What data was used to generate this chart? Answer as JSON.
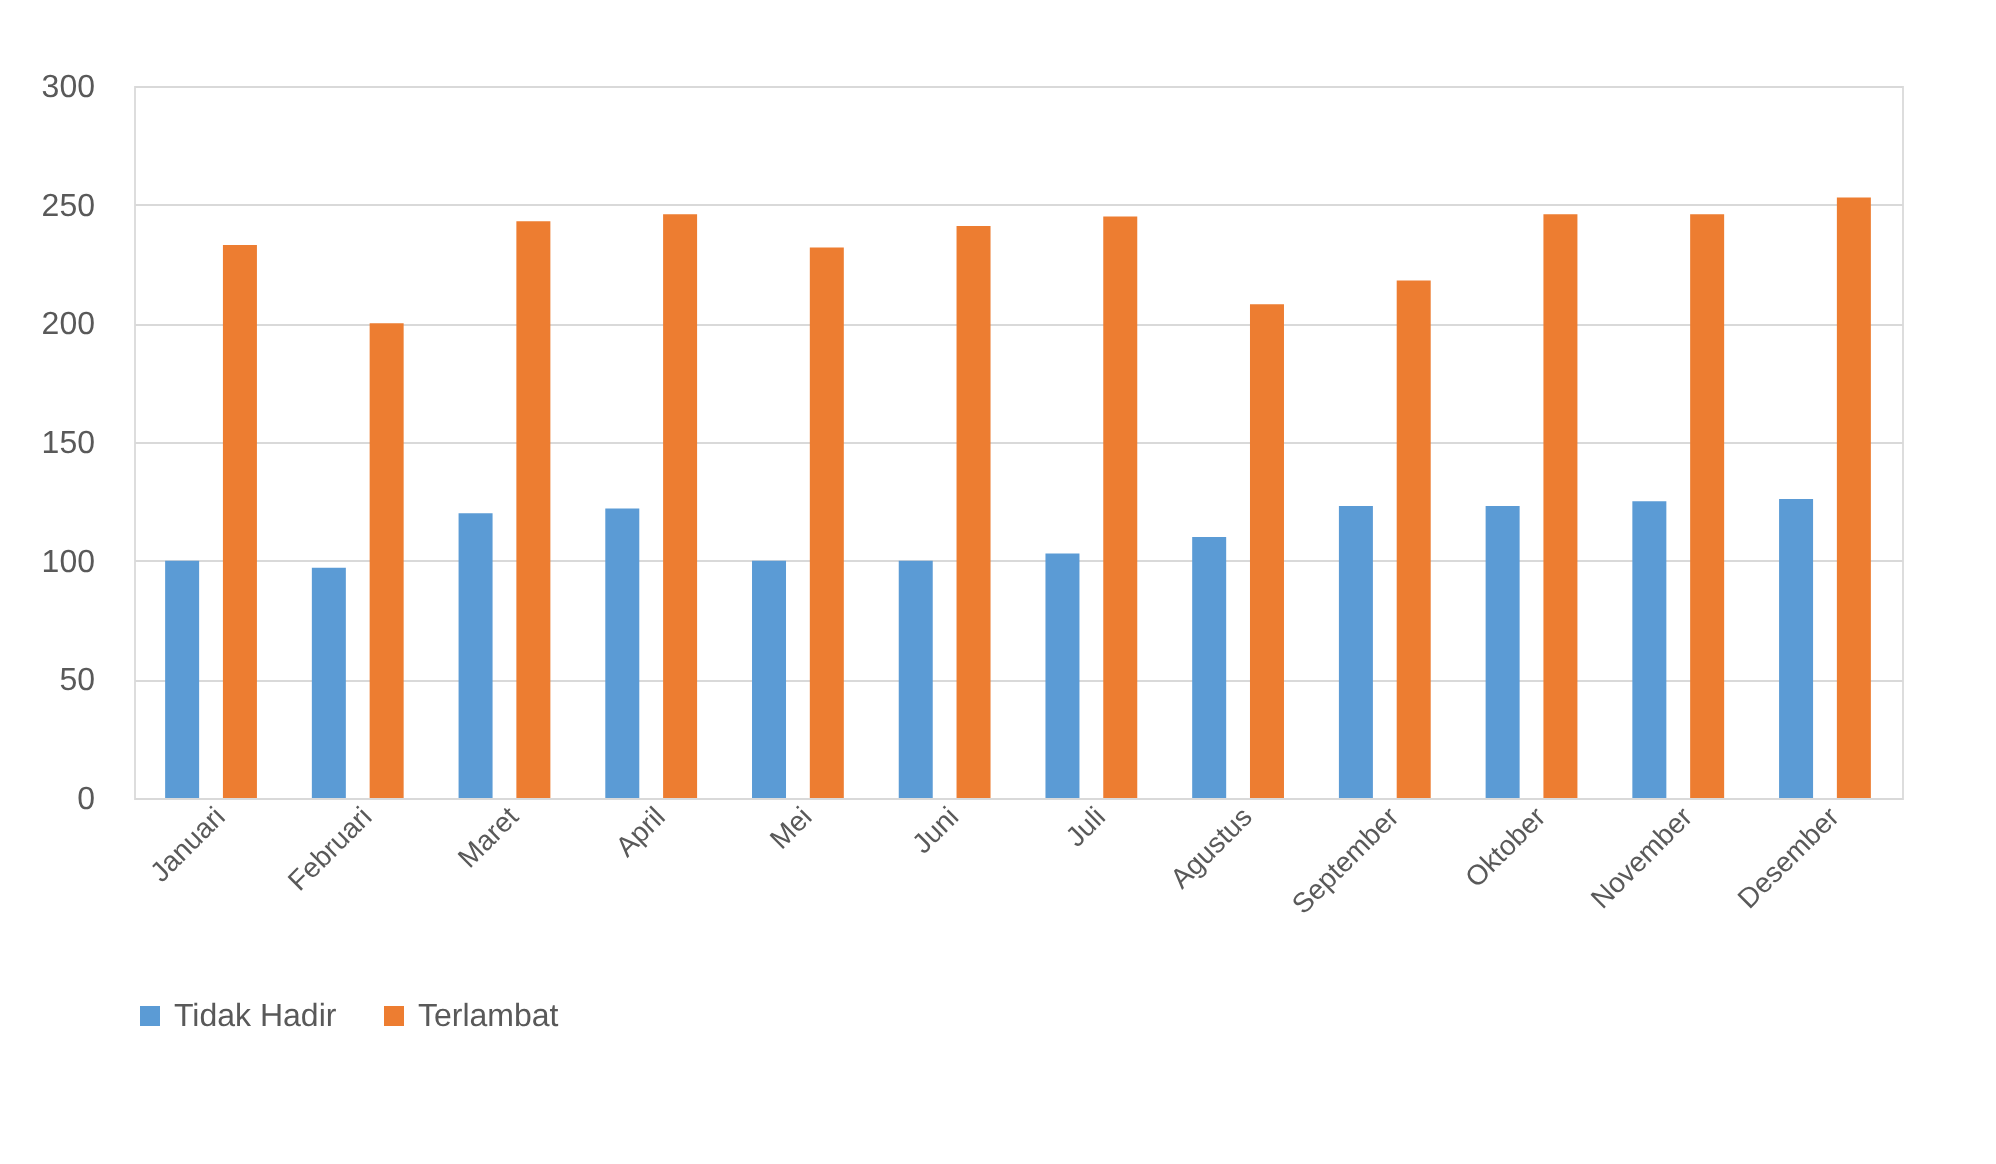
{
  "chart_data": {
    "type": "bar",
    "categories": [
      "Januari",
      "Februari",
      "Maret",
      "April",
      "Mei",
      "Juni",
      "Juli",
      "Agustus",
      "September",
      "Oktober",
      "November",
      "Desember"
    ],
    "series": [
      {
        "name": "Tidak Hadir",
        "color": "#5b9bd5",
        "values": [
          100,
          97,
          120,
          122,
          100,
          100,
          103,
          110,
          123,
          123,
          125,
          126
        ]
      },
      {
        "name": "Terlambat",
        "color": "#ed7d31",
        "values": [
          233,
          200,
          243,
          246,
          232,
          241,
          245,
          208,
          218,
          246,
          246,
          253
        ]
      }
    ],
    "ylim": [
      0,
      300
    ],
    "yticks": [
      0,
      50,
      100,
      150,
      200,
      250,
      300
    ],
    "grid": "y",
    "legend": "bottom"
  }
}
